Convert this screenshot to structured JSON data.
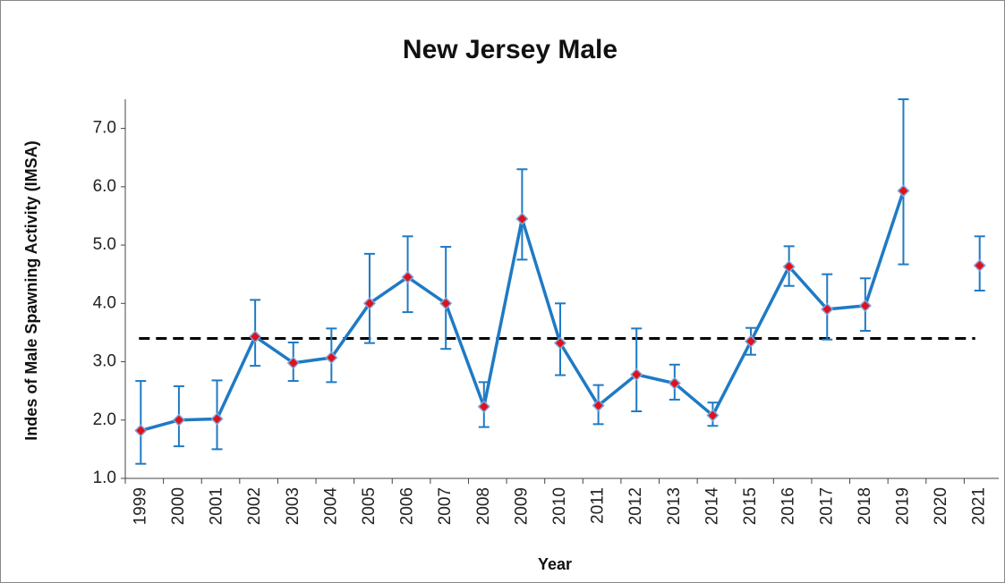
{
  "chart_data": {
    "type": "line",
    "title": "New Jersey Male",
    "x_label": "Year",
    "y_label": "Indes of Male Spawning Activity (IMSA)",
    "categories": [
      "1999",
      "2000",
      "2001",
      "2002",
      "2003",
      "2004",
      "2005",
      "2006",
      "2007",
      "2008",
      "2009",
      "2010",
      "2011",
      "2012",
      "2013",
      "2014",
      "2015",
      "2016",
      "2017",
      "2018",
      "2019",
      "2020",
      "2021"
    ],
    "series": [
      {
        "color": "#1f7ac4",
        "marker_color": "#e0101e",
        "values": [
          1.82,
          2.0,
          2.02,
          3.43,
          2.98,
          3.07,
          4.0,
          4.45,
          4.0,
          2.23,
          5.45,
          3.32,
          2.25,
          2.78,
          2.63,
          2.08,
          3.35,
          4.63,
          3.9,
          3.96,
          5.93,
          null,
          4.65
        ],
        "lower": [
          1.25,
          1.55,
          1.5,
          2.93,
          2.67,
          2.65,
          3.32,
          3.85,
          3.22,
          1.88,
          4.75,
          2.77,
          1.93,
          2.15,
          2.35,
          1.9,
          3.12,
          4.3,
          3.38,
          3.53,
          4.67,
          null,
          4.22
        ],
        "upper": [
          2.67,
          2.58,
          2.68,
          4.06,
          3.33,
          3.57,
          4.85,
          5.15,
          4.97,
          2.65,
          6.3,
          4.0,
          2.6,
          3.57,
          2.95,
          2.3,
          3.58,
          4.98,
          4.5,
          4.43,
          7.5,
          null,
          5.15
        ]
      }
    ],
    "reference_line": {
      "value": 3.4,
      "color": "#000000"
    },
    "ylim": [
      1,
      7.5
    ],
    "yticks": [
      {
        "value": 1,
        "label": "1.0"
      },
      {
        "value": 2,
        "label": "2.0"
      },
      {
        "value": 3,
        "label": "3.0"
      },
      {
        "value": 4,
        "label": "4.0"
      },
      {
        "value": 5,
        "label": "5.0"
      },
      {
        "value": 6,
        "label": "6.0"
      },
      {
        "value": 7,
        "label": "7.0"
      }
    ],
    "grid": false
  }
}
